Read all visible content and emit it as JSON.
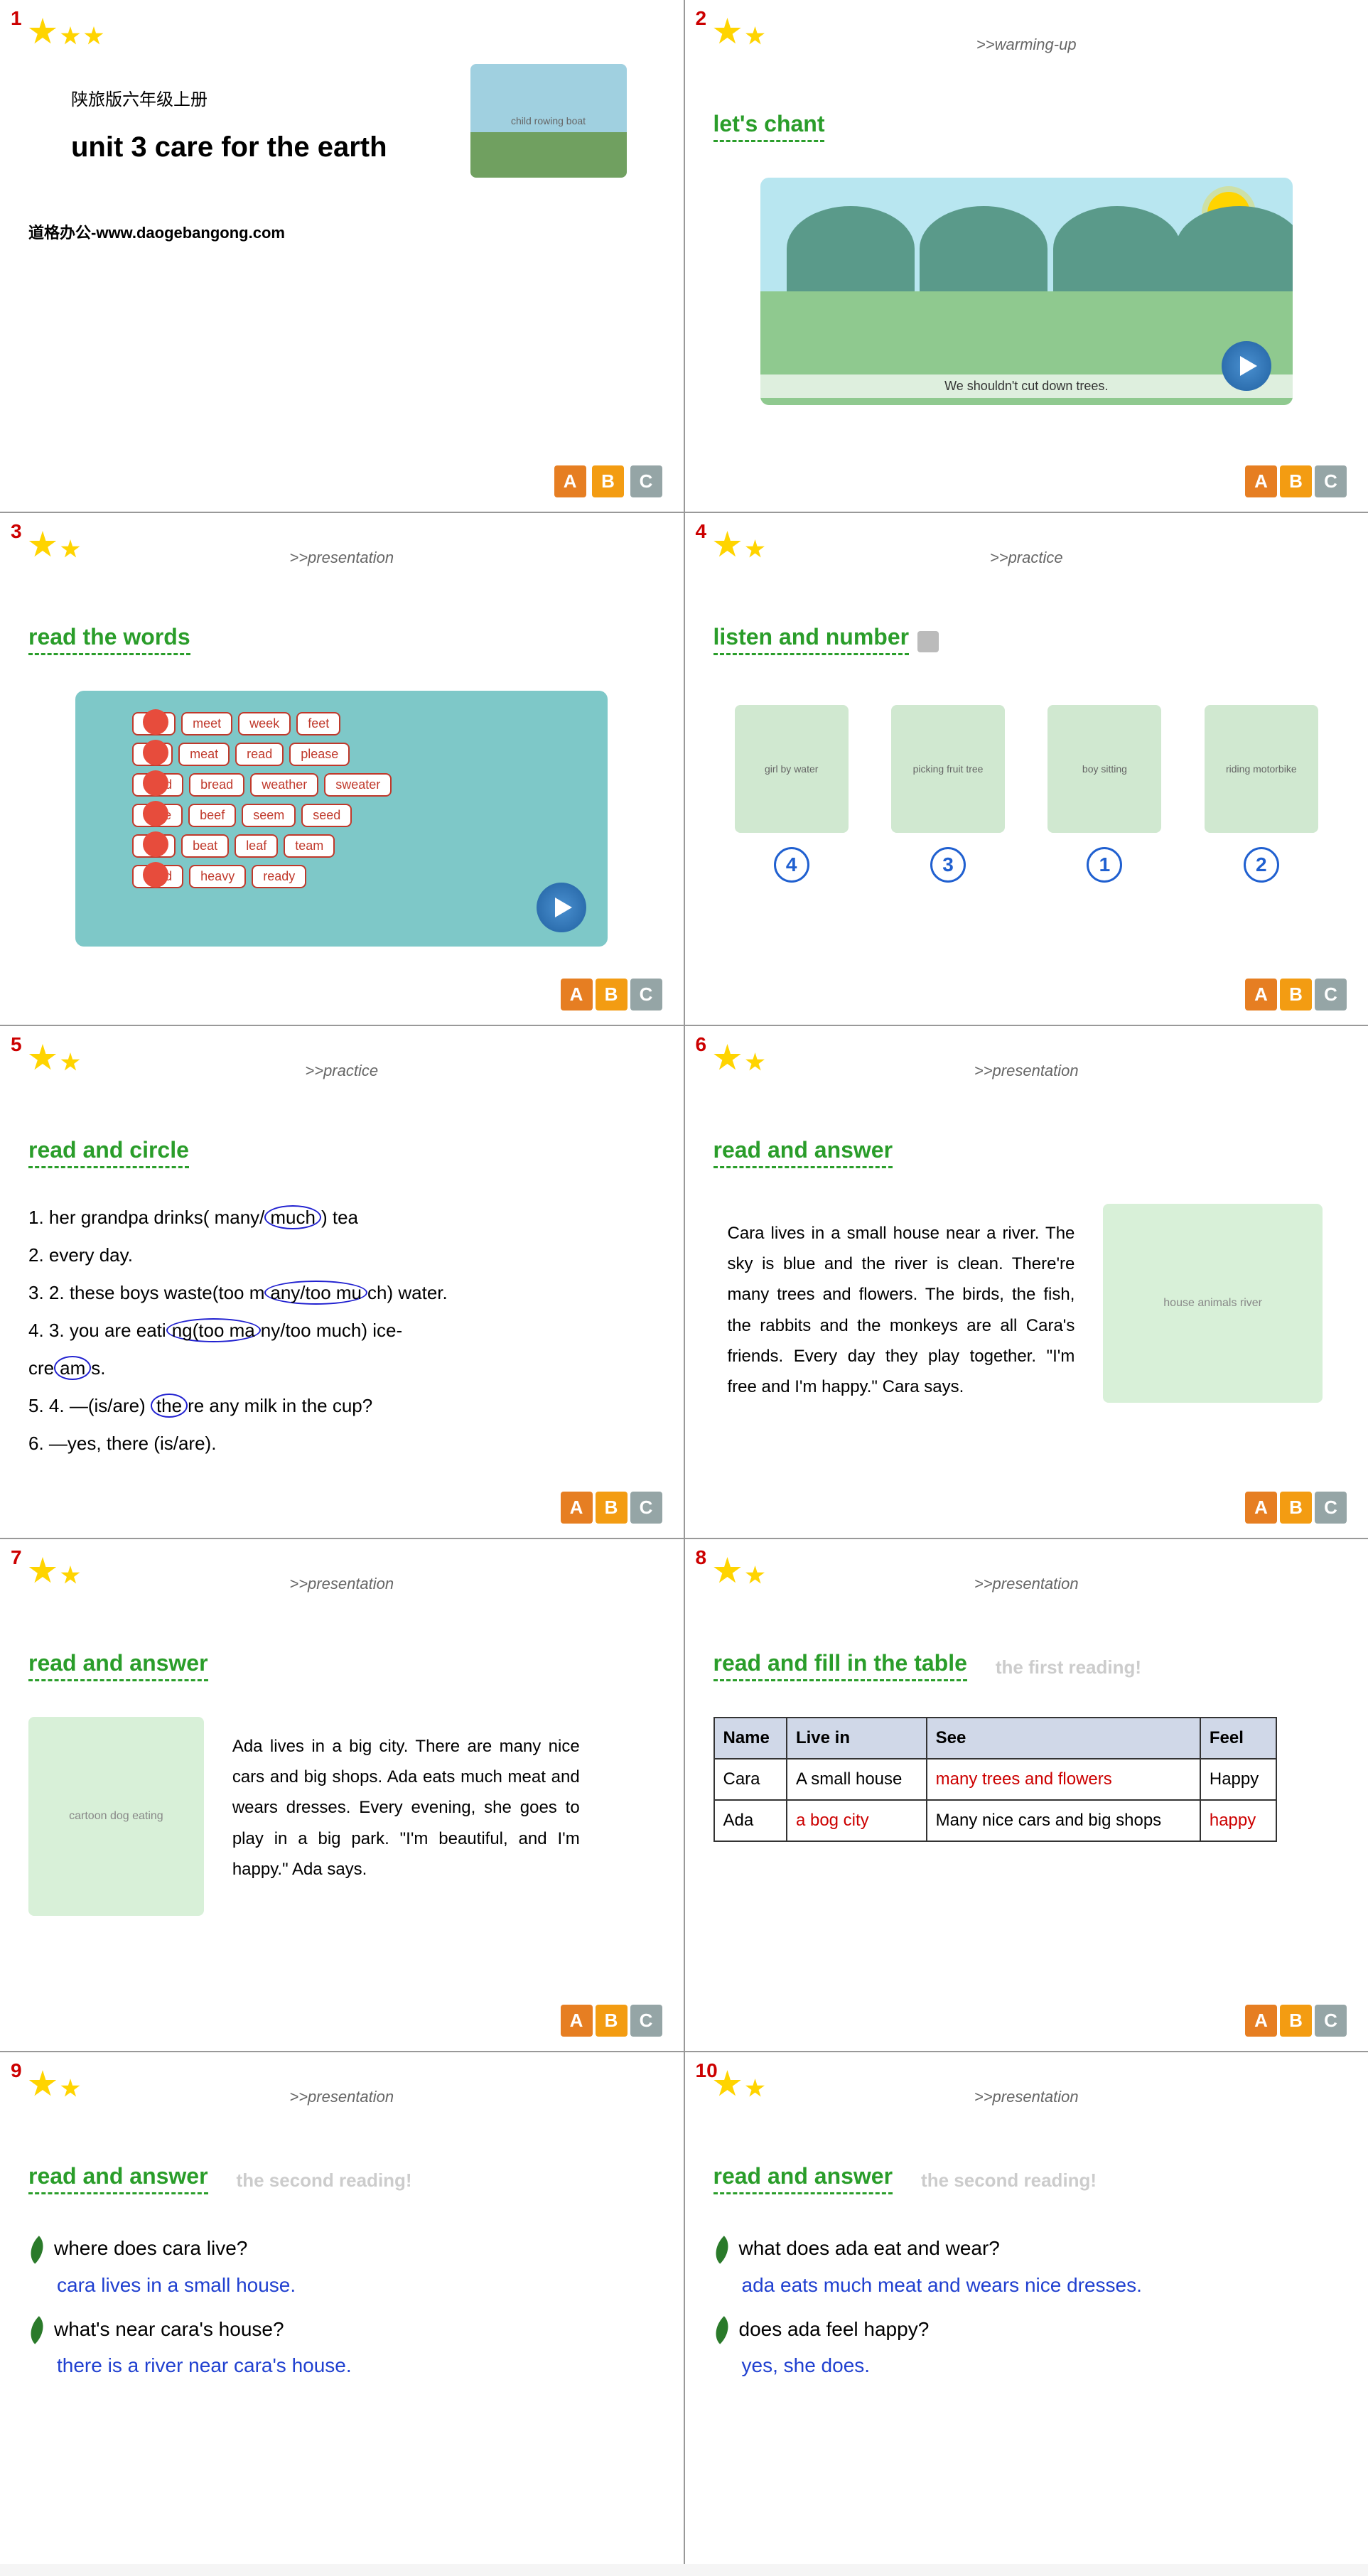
{
  "slides": {
    "s1": {
      "num": "1",
      "subtitle": "陕旅版六年级上册",
      "unit_title": "unit 3 care for the earth",
      "footer": "道格办公-www.daogebangong.com",
      "boat_alt": "child rowing boat"
    },
    "s2": {
      "num": "2",
      "tag": ">>warming-up",
      "heading": "let's chant",
      "caption": "We shouldn't cut down trees."
    },
    "s3": {
      "num": "3",
      "tag": ">>presentation",
      "heading": "read the words",
      "rows": [
        [
          "see",
          "meet",
          "week",
          "feet"
        ],
        [
          "tea",
          "meat",
          "read",
          "please"
        ],
        [
          "head",
          "bread",
          "weather",
          "sweater"
        ],
        [
          "knee",
          "beef",
          "seem",
          "seed"
        ],
        [
          "sea",
          "beat",
          "leaf",
          "team"
        ],
        [
          "dead",
          "heavy",
          "ready"
        ]
      ]
    },
    "s4": {
      "num": "4",
      "tag": ">>practice",
      "heading": "listen and number",
      "items": [
        {
          "alt": "girl by water",
          "num": "4"
        },
        {
          "alt": "picking fruit tree",
          "num": "3"
        },
        {
          "alt": "boy sitting",
          "num": "1"
        },
        {
          "alt": "riding motorbike",
          "num": "2"
        }
      ]
    },
    "s5": {
      "num": "5",
      "tag": ">>practice",
      "heading": "read and circle",
      "lines": [
        {
          "n": "1.",
          "text": "her grandpa drinks( many/",
          "circ": "much",
          "after": ") tea"
        },
        {
          "n": "2.",
          "text": "   every day.",
          "circ": "",
          "after": ""
        },
        {
          "n": "3.",
          "text": "2. these boys waste(too m",
          "circ": "any/too mu",
          "after": "ch) water."
        },
        {
          "n": "4.",
          "text": "3. you are eati",
          "circ": "ng(too ma",
          "after": "ny/too much) ice-"
        },
        {
          "n": "",
          "text": "   cre",
          "circ": "am",
          "after": "s."
        },
        {
          "n": "5.",
          "text": "4. —(is/are) ",
          "circ": "the",
          "after": "re any milk in the cup?"
        },
        {
          "n": "6.",
          "text": "   —yes, there (is/are).",
          "circ": "",
          "after": ""
        }
      ]
    },
    "s6": {
      "num": "6",
      "tag": ">>presentation",
      "heading": "read and answer",
      "passage": "Cara lives in a small house near a river. The sky is blue and the river is clean. There're many trees and flowers. The birds, the fish, the rabbits and the monkeys are all Cara's friends. Every day they play together. \"I'm free and I'm happy.\" Cara says.",
      "illus_alt": "house animals river"
    },
    "s7": {
      "num": "7",
      "tag": ">>presentation",
      "heading": "read and answer",
      "passage": "Ada lives in a big city. There are many nice cars and big shops. Ada eats much meat and wears dresses. Every evening, she goes to play in a big park. \"I'm beautiful, and I'm happy.\" Ada says.",
      "illus_alt": "cartoon dog eating"
    },
    "s8": {
      "num": "8",
      "tag": ">>presentation",
      "heading": "read and fill in the table",
      "note": "the first reading!",
      "table": {
        "headers": [
          "Name",
          "Live in",
          "See",
          "Feel"
        ],
        "rows": [
          [
            {
              "t": "Cara"
            },
            {
              "t": "A small house"
            },
            {
              "t": "many trees and flowers",
              "red": true
            },
            {
              "t": "Happy"
            }
          ],
          [
            {
              "t": "Ada"
            },
            {
              "t": "a bog city",
              "red": true
            },
            {
              "t": "Many nice cars and big shops"
            },
            {
              "t": "happy",
              "red": true
            }
          ]
        ]
      }
    },
    "s9": {
      "num": "9",
      "tag": ">>presentation",
      "heading": "read and answer",
      "note": "the second reading!",
      "qas": [
        {
          "q": "where does cara live?",
          "a": "cara lives in a small house."
        },
        {
          "q": "what's near cara's house?",
          "a": "there is a river near cara's house."
        }
      ]
    },
    "s10": {
      "num": "10",
      "tag": ">>presentation",
      "heading": "read and answer",
      "note": "the second reading!",
      "qas": [
        {
          "q": "what does ada eat and wear?",
          "a": "ada eats much meat and wears nice dresses."
        },
        {
          "q": "does ada feel happy?",
          "a": "yes, she does."
        }
      ]
    }
  },
  "abc": {
    "a": "A",
    "b": "B",
    "c": "C"
  },
  "colors": {
    "red": "#c00",
    "green": "#2a9d2a",
    "blue": "#2040d0",
    "star": "#ffd400",
    "panel": "#7ec8c8",
    "border": "#333"
  }
}
